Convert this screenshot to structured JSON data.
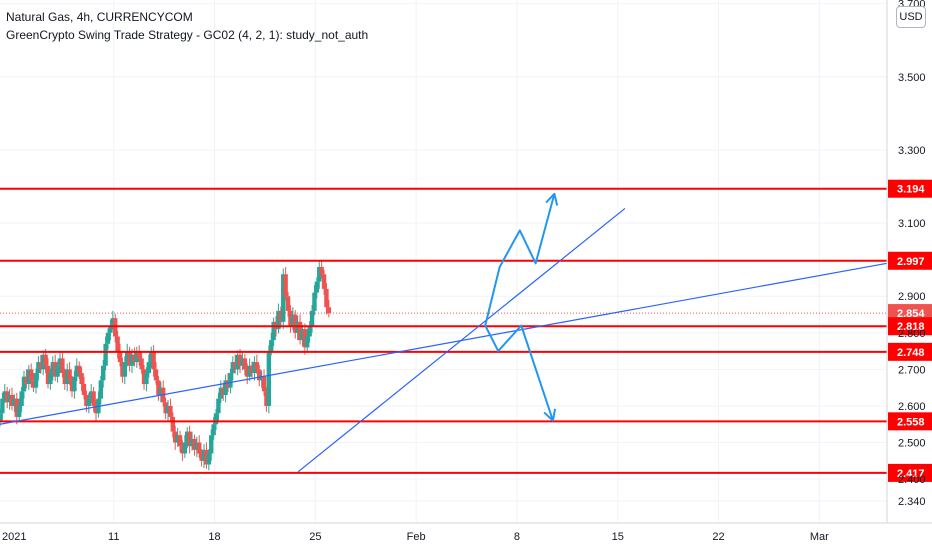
{
  "legend": {
    "title": "Natural Gas, 4h, CURRENCYCOM",
    "study": "GreenCrypto Swing Trade Strategy - GC02 (4, 2, 1): study_not_auth"
  },
  "currency_button": "USD",
  "colors": {
    "up": "#26a69a",
    "down": "#ef5350",
    "level": "#ff0000",
    "trend": "#2962ff",
    "arrow": "#2196f3",
    "current": "#ef5350",
    "grid": "#f0f3fa"
  },
  "chart_data": {
    "type": "candlestick",
    "symbol": "Natural Gas",
    "interval": "4h",
    "source": "CURRENCYCOM",
    "ylim": [
      2.28,
      3.71
    ],
    "y_ticks": [
      2.34,
      2.4,
      2.5,
      2.6,
      2.7,
      2.8,
      2.9,
      3.1,
      3.3,
      3.5,
      3.7
    ],
    "y_tick_labels": [
      "2.340",
      "2.400",
      "2.500",
      "2.600",
      "2.700",
      "2.800",
      "2.900",
      "3.100",
      "3.300",
      "3.500",
      "3.700"
    ],
    "x_ticks": [
      {
        "day": 3,
        "label": "2021"
      },
      {
        "day": 11,
        "label": "11"
      },
      {
        "day": 18,
        "label": "18"
      },
      {
        "day": 25,
        "label": "25"
      },
      {
        "day": 32,
        "label": "Feb"
      },
      {
        "day": 39,
        "label": "8"
      },
      {
        "day": 46,
        "label": "15"
      },
      {
        "day": 53,
        "label": "22"
      },
      {
        "day": 60,
        "label": "Mar"
      }
    ],
    "x_range_days": [
      3.1,
      64.7
    ],
    "candles_start_day": 3.1,
    "candle_step_days": 0.1667,
    "closes": [
      2.58,
      2.62,
      2.64,
      2.61,
      2.63,
      2.6,
      2.62,
      2.57,
      2.6,
      2.64,
      2.68,
      2.66,
      2.7,
      2.67,
      2.65,
      2.69,
      2.72,
      2.7,
      2.74,
      2.71,
      2.66,
      2.69,
      2.72,
      2.68,
      2.71,
      2.73,
      2.69,
      2.66,
      2.7,
      2.67,
      2.64,
      2.68,
      2.71,
      2.69,
      2.66,
      2.63,
      2.6,
      2.62,
      2.64,
      2.6,
      2.58,
      2.62,
      2.67,
      2.71,
      2.77,
      2.8,
      2.82,
      2.84,
      2.79,
      2.75,
      2.72,
      2.68,
      2.72,
      2.75,
      2.71,
      2.74,
      2.72,
      2.75,
      2.73,
      2.7,
      2.66,
      2.69,
      2.72,
      2.75,
      2.7,
      2.67,
      2.63,
      2.65,
      2.61,
      2.58,
      2.6,
      2.57,
      2.53,
      2.5,
      2.52,
      2.49,
      2.47,
      2.5,
      2.53,
      2.49,
      2.51,
      2.48,
      2.5,
      2.47,
      2.45,
      2.48,
      2.44,
      2.47,
      2.52,
      2.55,
      2.58,
      2.62,
      2.65,
      2.63,
      2.67,
      2.65,
      2.69,
      2.72,
      2.7,
      2.74,
      2.71,
      2.73,
      2.7,
      2.68,
      2.71,
      2.69,
      2.72,
      2.7,
      2.67,
      2.68,
      2.64,
      2.6,
      2.75,
      2.78,
      2.83,
      2.81,
      2.86,
      2.83,
      2.96,
      2.9,
      2.86,
      2.82,
      2.85,
      2.8,
      2.83,
      2.78,
      2.81,
      2.76,
      2.79,
      2.82,
      2.86,
      2.91,
      2.94,
      2.98,
      2.96,
      2.92,
      2.87,
      2.854
    ],
    "levels": [
      3.194,
      2.997,
      2.854,
      2.818,
      2.748,
      2.558,
      2.417
    ],
    "current_price": 2.854,
    "trend_lines": [
      {
        "from": [
          3.1,
          2.55
        ],
        "to": [
          64.7,
          2.99
        ]
      },
      {
        "from": [
          23.8,
          2.42
        ],
        "to": [
          46.5,
          3.14
        ]
      }
    ],
    "projections": [
      {
        "direction": "up",
        "points": [
          [
            36.8,
            2.82
          ],
          [
            37.8,
            2.98
          ],
          [
            39.2,
            3.08
          ],
          [
            40.3,
            2.99
          ],
          [
            41.6,
            3.18
          ]
        ]
      },
      {
        "direction": "down",
        "points": [
          [
            36.8,
            2.82
          ],
          [
            37.7,
            2.75
          ],
          [
            39.3,
            2.82
          ],
          [
            41.5,
            2.56
          ]
        ]
      }
    ]
  }
}
